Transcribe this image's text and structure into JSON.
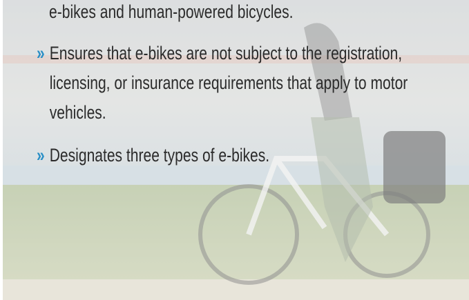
{
  "continuation": "e-bikes and human-powered bicycles.",
  "bullet_marker": "»",
  "bullets": [
    "Ensures that e-bikes are not subject to the registration, licensing, or insurance requirements that apply to motor vehicles.",
    "Designates three types of e-bikes."
  ]
}
